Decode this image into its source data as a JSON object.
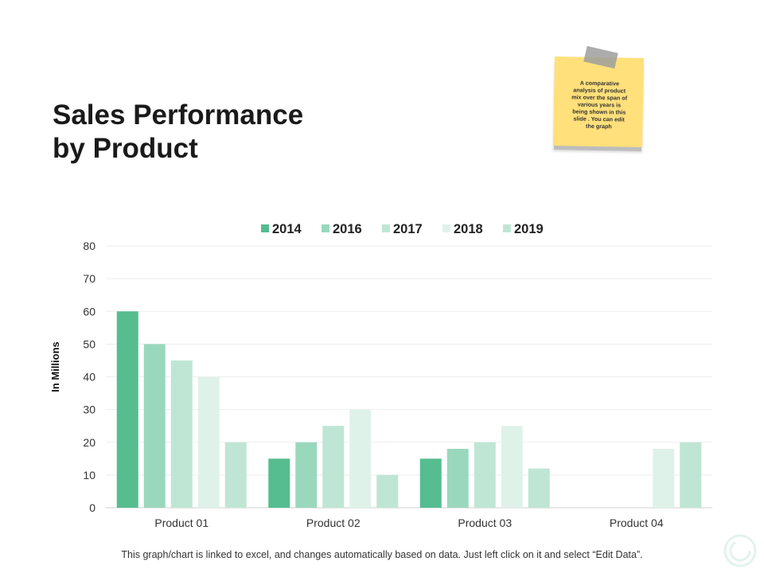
{
  "title_lines": [
    "Sales Performance",
    "by Product"
  ],
  "note": {
    "lines": [
      "A comparative",
      "analysis  of product",
      "mix over the span of",
      "various years  is",
      "being shown  in this",
      "slide . You can edit",
      "the graph"
    ]
  },
  "footer": "This graph/chart is linked to excel, and changes automatically based on data. Just left click on it and select “Edit Data”.",
  "chart_data": {
    "type": "bar",
    "categories": [
      "Product 01",
      "Product 02",
      "Product 03",
      "Product 04"
    ],
    "series": [
      {
        "name": "2014",
        "values": [
          60,
          15,
          15,
          null
        ],
        "color": "#55bd8f"
      },
      {
        "name": "2016",
        "values": [
          50,
          20,
          18,
          null
        ],
        "color": "#9ad8bd"
      },
      {
        "name": "2017",
        "values": [
          45,
          25,
          20,
          null
        ],
        "color": "#bfe6d4"
      },
      {
        "name": "2018",
        "values": [
          40,
          30,
          25,
          18
        ],
        "color": "#dff2ea"
      },
      {
        "name": "2019",
        "values": [
          20,
          10,
          12,
          20
        ],
        "color": "#bfe6d4"
      }
    ],
    "ylabel": "In Millions",
    "xlabel": "",
    "ylim": [
      0,
      80
    ],
    "yticks": [
      0,
      10,
      20,
      30,
      40,
      50,
      60,
      70,
      80
    ],
    "grid": true,
    "legend_position": "top"
  }
}
